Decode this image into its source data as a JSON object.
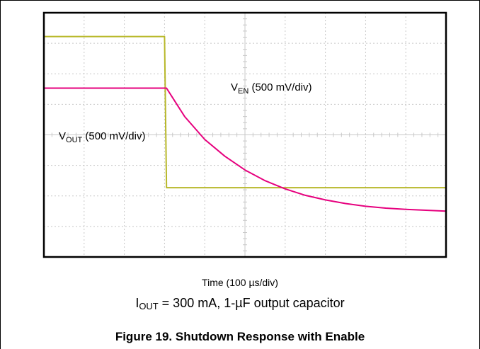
{
  "chart_data": {
    "type": "line",
    "x_divisions": 10,
    "y_divisions": 8,
    "series": [
      {
        "name": "V_EN (500 mV/div)",
        "color": "#b8b82a",
        "label": {
          "main": "V",
          "sub": "EN",
          "rest": " (500 mV/div)"
        },
        "points": [
          [
            0,
            7.22
          ],
          [
            3.0,
            7.22
          ],
          [
            3.05,
            2.27
          ],
          [
            10,
            2.27
          ]
        ]
      },
      {
        "name": "V_OUT (500 mV/div)",
        "color": "#e6007e",
        "label": {
          "main": "V",
          "sub": "OUT",
          "rest": " (500 mV/div)"
        },
        "points": [
          [
            0,
            5.53
          ],
          [
            3.0,
            5.53
          ],
          [
            3.05,
            5.53
          ],
          [
            3.5,
            4.6
          ],
          [
            4.0,
            3.85
          ],
          [
            4.5,
            3.3
          ],
          [
            5.0,
            2.85
          ],
          [
            5.5,
            2.5
          ],
          [
            6.0,
            2.23
          ],
          [
            6.5,
            2.02
          ],
          [
            7.0,
            1.87
          ],
          [
            7.5,
            1.75
          ],
          [
            8.0,
            1.66
          ],
          [
            8.5,
            1.6
          ],
          [
            9.0,
            1.56
          ],
          [
            9.5,
            1.53
          ],
          [
            10,
            1.5
          ]
        ]
      }
    ],
    "xlabel": "Time (100 µs/div)"
  },
  "caption": {
    "condition": {
      "main": "I",
      "sub": "OUT",
      "rest": " = 300 mA, 1-µF output capacitor"
    },
    "title": "Figure 19. Shutdown Response with Enable"
  },
  "colors": {
    "grid": "#c8c8c8",
    "frame": "#000000"
  }
}
